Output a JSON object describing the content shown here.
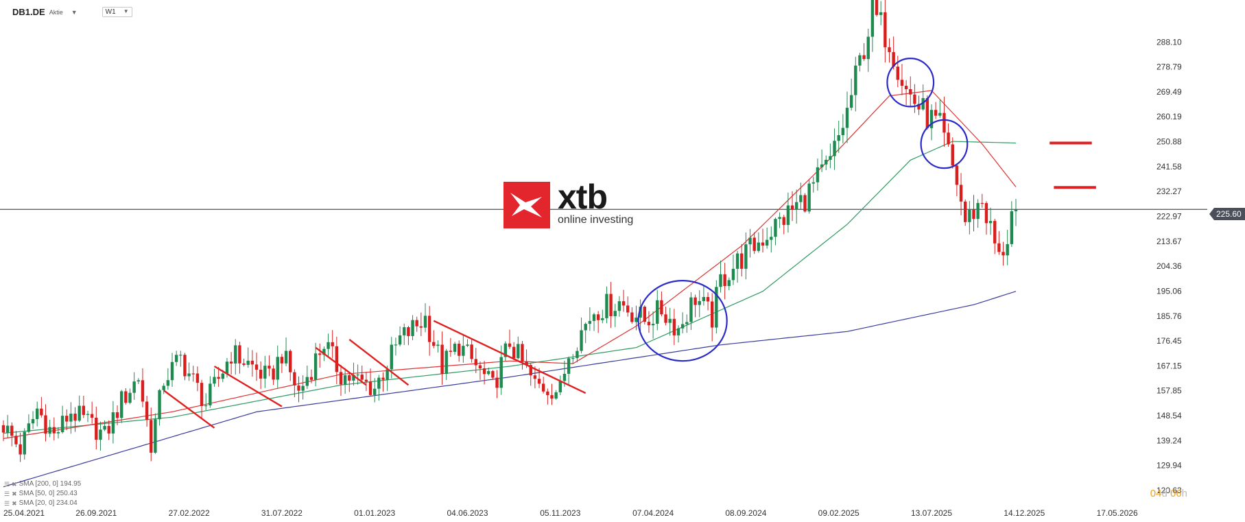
{
  "header": {
    "symbol": "DB1.DE",
    "instrument_type": "Aktie",
    "timeframe": "W1"
  },
  "logo": {
    "name": "xtb",
    "tagline": "online investing",
    "accent": "#e3262e"
  },
  "price": {
    "current": "225.60",
    "current_value": 225.6
  },
  "countdown": {
    "days": "04",
    "days_unit": "d",
    "hours": "06",
    "hours_unit": "h"
  },
  "legend": [
    {
      "label": "SMA [200, 0] 194.95"
    },
    {
      "label": "SMA [50, 0] 250.43"
    },
    {
      "label": "SMA [20, 0] 234.04"
    }
  ],
  "chart_data": {
    "type": "candlestick",
    "symbol": "DB1.DE",
    "timeframe": "W1",
    "y_range": [
      120.63,
      297.4
    ],
    "y_ticks": [
      288.1,
      278.79,
      269.49,
      260.19,
      250.88,
      241.58,
      232.27,
      222.97,
      213.67,
      204.36,
      195.06,
      185.76,
      176.45,
      167.15,
      157.85,
      148.54,
      139.24,
      129.94,
      120.63
    ],
    "x_ticks": [
      "25.04.2021",
      "26.09.2021",
      "27.02.2022",
      "31.07.2022",
      "01.01.2023",
      "04.06.2023",
      "05.11.2023",
      "07.04.2024",
      "08.09.2024",
      "09.02.2025",
      "13.07.2025",
      "14.12.2025",
      "17.05.2026"
    ],
    "x_tick_weeks": [
      0,
      22,
      44,
      66,
      88,
      110,
      132,
      154,
      176,
      198,
      220,
      242,
      264
    ],
    "current_price": 225.6,
    "colors": {
      "up": "#1f8a50",
      "down": "#d91e1e",
      "sma200": "#3a3a9e",
      "sma50": "#2e9a62",
      "sma20": "#e03030",
      "annotation": "#e02020",
      "circle": "#2a2ac8",
      "price_line": "#4a4f5a"
    },
    "anchors": [
      [
        0,
        145
      ],
      [
        4,
        136
      ],
      [
        8,
        151
      ],
      [
        12,
        141
      ],
      [
        16,
        150
      ],
      [
        20,
        146
      ],
      [
        24,
        141
      ],
      [
        28,
        154
      ],
      [
        32,
        163
      ],
      [
        35,
        138
      ],
      [
        38,
        162
      ],
      [
        42,
        170
      ],
      [
        48,
        153
      ],
      [
        54,
        172
      ],
      [
        58,
        168
      ],
      [
        63,
        162
      ],
      [
        66,
        172
      ],
      [
        70,
        157
      ],
      [
        76,
        176
      ],
      [
        80,
        164
      ],
      [
        88,
        159
      ],
      [
        94,
        177
      ],
      [
        100,
        185
      ],
      [
        104,
        167
      ],
      [
        108,
        175
      ],
      [
        116,
        159
      ],
      [
        120,
        176
      ],
      [
        126,
        160
      ],
      [
        132,
        158
      ],
      [
        134,
        172
      ],
      [
        140,
        188
      ],
      [
        146,
        191
      ],
      [
        152,
        184
      ],
      [
        156,
        188
      ],
      [
        160,
        181
      ],
      [
        164,
        193
      ],
      [
        168,
        185
      ],
      [
        170,
        199
      ],
      [
        174,
        206
      ],
      [
        180,
        215
      ],
      [
        186,
        224
      ],
      [
        190,
        230
      ],
      [
        196,
        243
      ],
      [
        200,
        262
      ],
      [
        206,
        299
      ],
      [
        210,
        289
      ],
      [
        214,
        270
      ],
      [
        218,
        262
      ],
      [
        222,
        256
      ],
      [
        226,
        236
      ],
      [
        228,
        221
      ],
      [
        232,
        229
      ],
      [
        236,
        207
      ],
      [
        238,
        215
      ],
      [
        240,
        233
      ]
    ],
    "sma200": [
      [
        0,
        122
      ],
      [
        60,
        150
      ],
      [
        120,
        163
      ],
      [
        170,
        175
      ],
      [
        200,
        180
      ],
      [
        230,
        190
      ],
      [
        240,
        195
      ]
    ],
    "sma50": [
      [
        0,
        142
      ],
      [
        40,
        148
      ],
      [
        80,
        160
      ],
      [
        120,
        167
      ],
      [
        150,
        174
      ],
      [
        180,
        195
      ],
      [
        200,
        220
      ],
      [
        215,
        244
      ],
      [
        225,
        251
      ],
      [
        240,
        250.4
      ]
    ],
    "sma20": [
      [
        0,
        140
      ],
      [
        40,
        150
      ],
      [
        80,
        164
      ],
      [
        120,
        169
      ],
      [
        135,
        168
      ],
      [
        150,
        182
      ],
      [
        175,
        212
      ],
      [
        195,
        243
      ],
      [
        210,
        268
      ],
      [
        220,
        270
      ],
      [
        232,
        250
      ],
      [
        240,
        234
      ]
    ],
    "trendlines": [
      [
        [
          38,
          158
        ],
        [
          50,
          144
        ]
      ],
      [
        [
          50,
          167
        ],
        [
          66,
          152
        ]
      ],
      [
        [
          74,
          174
        ],
        [
          86,
          160
        ]
      ],
      [
        [
          82,
          177
        ],
        [
          96,
          160
        ]
      ],
      [
        [
          102,
          184
        ],
        [
          138,
          157
        ]
      ]
    ],
    "circles": [
      {
        "week": 161,
        "price": 184,
        "rx_weeks": 10.5,
        "ry_price": 15
      },
      {
        "week": 215,
        "price": 273,
        "rx_weeks": 5.5,
        "ry_price": 9
      },
      {
        "week": 223,
        "price": 250,
        "rx_weeks": 5.5,
        "ry_price": 9
      }
    ],
    "resistance_marks": [
      {
        "from_week": 248,
        "to_week": 258,
        "price": 250.4
      },
      {
        "from_week": 249,
        "to_week": 259,
        "price": 233.8
      }
    ]
  }
}
